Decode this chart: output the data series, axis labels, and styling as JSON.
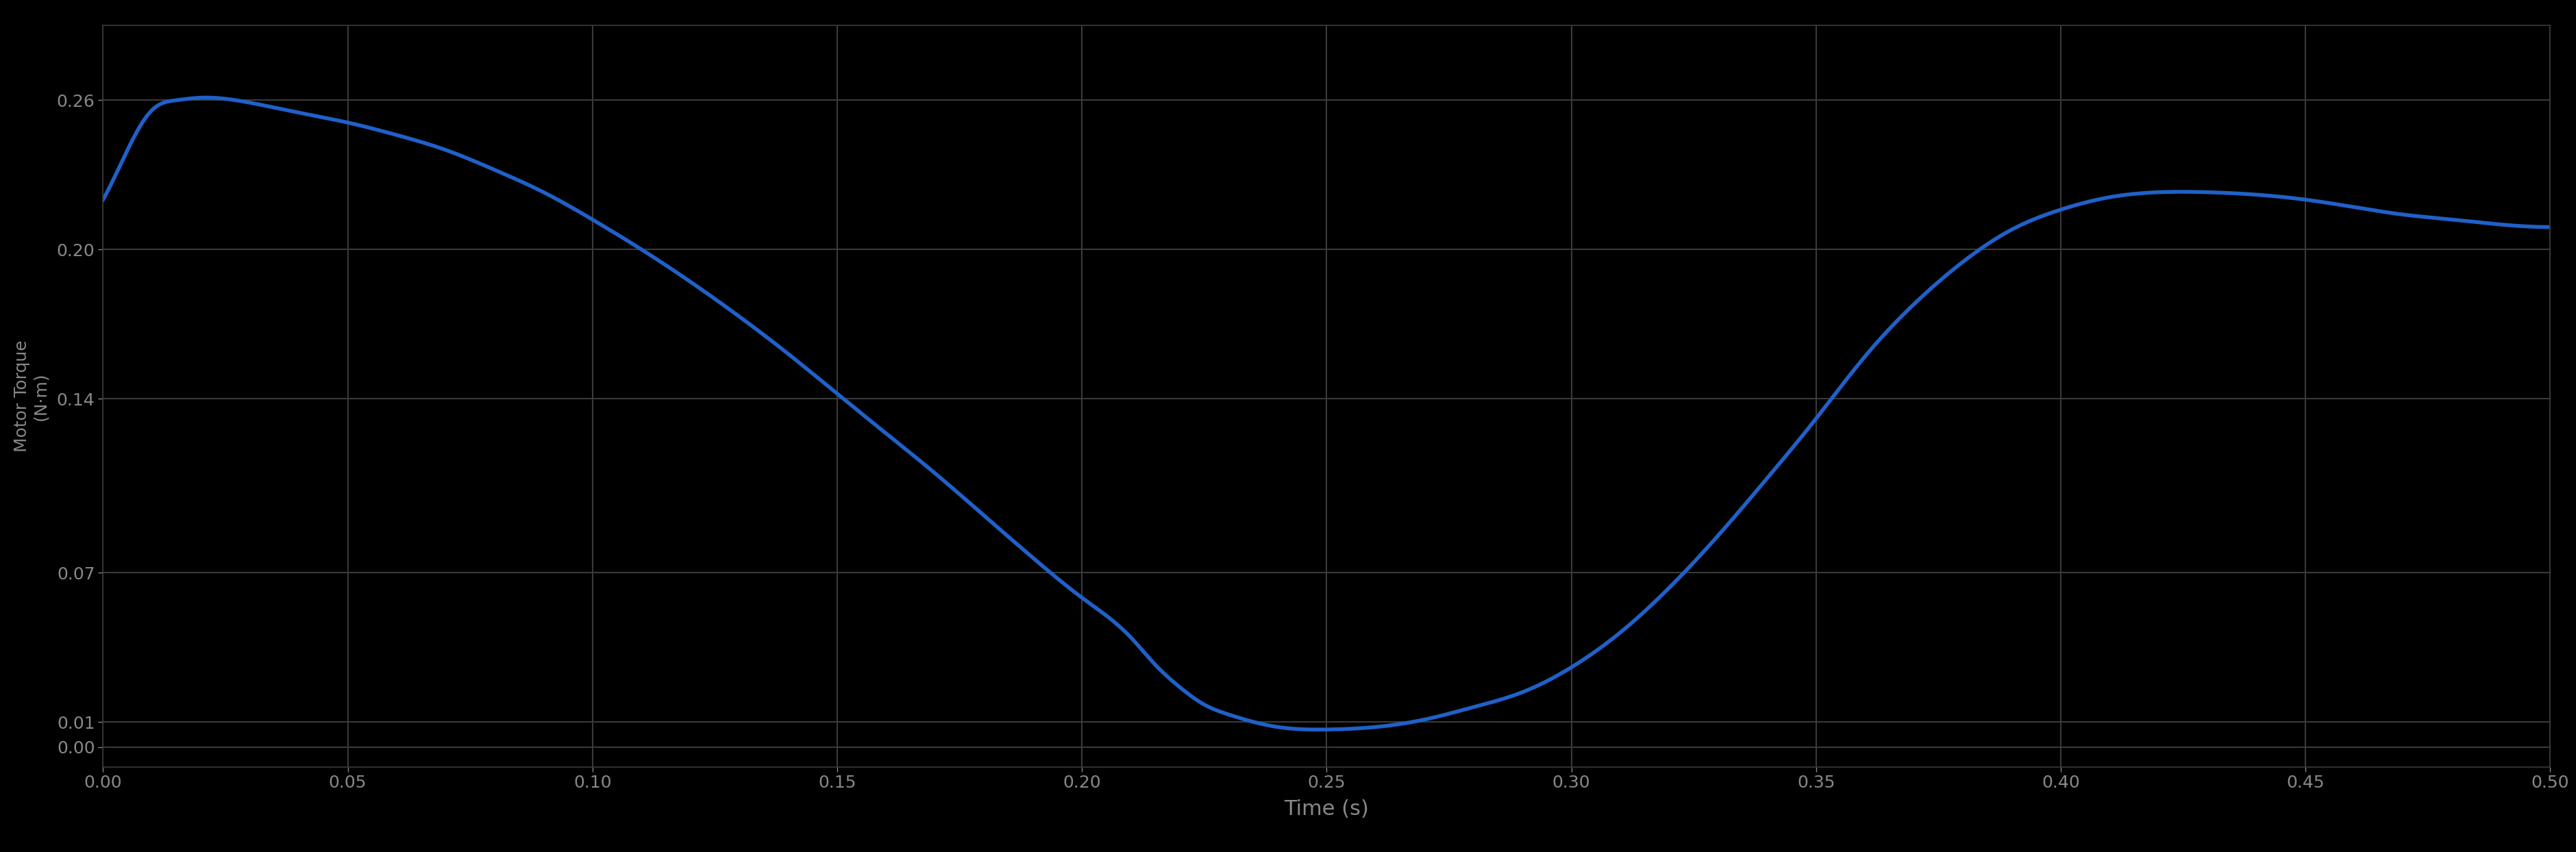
{
  "title": "",
  "xlabel": "Time (s)",
  "ylabel": "Motor Torque\n(N·m)",
  "background_color": "#000000",
  "plot_area_color": "#000000",
  "line_color": "#2060c8",
  "line_width": 4.0,
  "grid_color": "#3a3a3a",
  "tick_color": "#888888",
  "label_color": "#888888",
  "ylim": [
    -0.008,
    0.29
  ],
  "xlim": [
    0.0,
    0.5
  ],
  "yticks": [
    0.0,
    0.01,
    0.07,
    0.14,
    0.2,
    0.26
  ],
  "xticks": [
    0.0,
    0.05,
    0.1,
    0.15,
    0.2,
    0.25,
    0.3,
    0.35,
    0.4,
    0.45,
    0.5
  ],
  "curve_x": [
    0.0,
    0.005,
    0.01,
    0.015,
    0.02,
    0.03,
    0.04,
    0.05,
    0.06,
    0.07,
    0.08,
    0.09,
    0.1,
    0.11,
    0.12,
    0.13,
    0.14,
    0.15,
    0.16,
    0.17,
    0.18,
    0.19,
    0.2,
    0.21,
    0.215,
    0.22,
    0.225,
    0.23,
    0.24,
    0.25,
    0.26,
    0.27,
    0.28,
    0.29,
    0.3,
    0.31,
    0.32,
    0.33,
    0.34,
    0.35,
    0.36,
    0.37,
    0.38,
    0.39,
    0.4,
    0.41,
    0.42,
    0.43,
    0.44,
    0.45,
    0.46,
    0.47,
    0.48,
    0.49,
    0.5
  ],
  "curve_y": [
    0.22,
    0.24,
    0.256,
    0.26,
    0.261,
    0.259,
    0.255,
    0.251,
    0.246,
    0.24,
    0.232,
    0.223,
    0.212,
    0.2,
    0.187,
    0.173,
    0.158,
    0.142,
    0.126,
    0.11,
    0.093,
    0.076,
    0.06,
    0.044,
    0.033,
    0.024,
    0.017,
    0.013,
    0.008,
    0.007,
    0.008,
    0.011,
    0.016,
    0.022,
    0.032,
    0.046,
    0.064,
    0.085,
    0.108,
    0.132,
    0.157,
    0.178,
    0.195,
    0.208,
    0.216,
    0.221,
    0.223,
    0.223,
    0.222,
    0.22,
    0.217,
    0.214,
    0.212,
    0.21,
    0.209
  ]
}
